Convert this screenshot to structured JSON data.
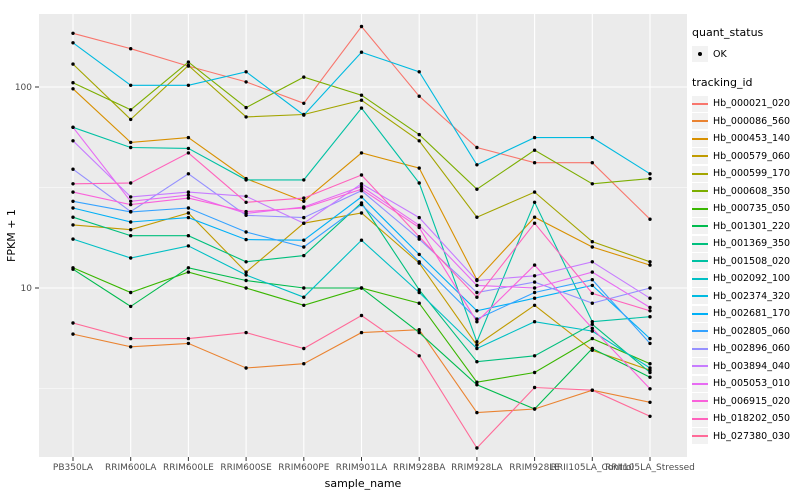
{
  "chart_data": {
    "type": "line",
    "title": "",
    "xlabel": "sample_name",
    "ylabel": "FPKM + 1",
    "y_scale": "log10",
    "y_ticks": [
      100,
      10
    ],
    "y_minor_ticks": [
      31.62,
      3.162
    ],
    "ylim": [
      1.45,
      230
    ],
    "grid": "on",
    "legend_position": "right",
    "point_marker": "filled-circle",
    "point_color": "#000000",
    "categories": [
      "PB350LA",
      "RRIM600LA",
      "RRIM600LE",
      "RRIM600SE",
      "RRIM600PE",
      "RRIM901LA",
      "RRIM928BA",
      "RRIM928LA",
      "RRIM928LE",
      "RRII105LA_Control",
      "RRII105LA_Stressed"
    ],
    "series": [
      {
        "name": "Hb_000021_020",
        "color": "#F8766D",
        "values": [
          185,
          155,
          127,
          106,
          83,
          200,
          90,
          50,
          42,
          42,
          22
        ]
      },
      {
        "name": "Hb_000086_560",
        "color": "#EA8331",
        "values": [
          5.9,
          5.1,
          5.3,
          4.0,
          4.2,
          6.0,
          6.2,
          2.4,
          2.5,
          3.1,
          2.7
        ]
      },
      {
        "name": "Hb_000453_140",
        "color": "#D89000",
        "values": [
          98,
          53,
          56,
          35,
          27,
          47,
          39.5,
          11,
          22.5,
          16,
          13
        ]
      },
      {
        "name": "Hb_000579_060",
        "color": "#C09B00",
        "values": [
          20.6,
          19.5,
          23.6,
          12,
          21,
          23.6,
          13.3,
          5.2,
          8.2,
          4.9,
          3.9
        ]
      },
      {
        "name": "Hb_000599_170",
        "color": "#A3A500",
        "values": [
          130,
          69,
          128,
          71,
          73,
          86,
          54,
          22.5,
          30,
          17,
          13.5
        ]
      },
      {
        "name": "Hb_000608_350",
        "color": "#7CAE00",
        "values": [
          105,
          77,
          133,
          79,
          112,
          91,
          58,
          31,
          48.5,
          33,
          35
        ]
      },
      {
        "name": "Hb_000735_050",
        "color": "#39B600",
        "values": [
          12.6,
          9.5,
          12.0,
          10.0,
          8.2,
          10.0,
          8.4,
          3.4,
          3.8,
          5.6,
          4.2
        ]
      },
      {
        "name": "Hb_001301_220",
        "color": "#00BB4E",
        "values": [
          12.4,
          8.1,
          12.6,
          10.9,
          10.0,
          10.0,
          6.0,
          3.3,
          2.5,
          5.0,
          3.6
        ]
      },
      {
        "name": "Hb_001369_350",
        "color": "#00BF7D",
        "values": [
          22.5,
          18.2,
          18.2,
          13.5,
          14.5,
          26.5,
          9.8,
          4.3,
          4.6,
          6.6,
          3.8
        ]
      },
      {
        "name": "Hb_001508_020",
        "color": "#00C1A3",
        "values": [
          63,
          50,
          49.5,
          34.5,
          34.5,
          78.5,
          33.3,
          5.4,
          26.7,
          6.8,
          7.2
        ]
      },
      {
        "name": "Hb_002092_100",
        "color": "#00BFC4",
        "values": [
          17.5,
          14.1,
          16.2,
          11.6,
          9.0,
          17.3,
          9.5,
          5.0,
          6.8,
          6.1,
          4.0
        ]
      },
      {
        "name": "Hb_002374_320",
        "color": "#00BAE0",
        "values": [
          166,
          102,
          102,
          119,
          72.5,
          149,
          119,
          41,
          56,
          56,
          37
        ]
      },
      {
        "name": "Hb_002681_170",
        "color": "#00B0F6",
        "values": [
          25,
          21.3,
          22.4,
          17.4,
          17.3,
          28.4,
          14.7,
          7.7,
          8.9,
          10.3,
          5.6
        ]
      },
      {
        "name": "Hb_002805_060",
        "color": "#35A2FF",
        "values": [
          27,
          23.9,
          25,
          19,
          16,
          26,
          13.5,
          7.0,
          9.5,
          11,
          5.3
        ]
      },
      {
        "name": "Hb_002896_060",
        "color": "#9590FF",
        "values": [
          39,
          24,
          37,
          23,
          22.4,
          30.5,
          17.5,
          9.5,
          10.7,
          8.4,
          10
        ]
      },
      {
        "name": "Hb_003894_040",
        "color": "#C77CFF",
        "values": [
          54,
          28.4,
          30,
          28.6,
          21,
          33,
          22.4,
          10.9,
          11.5,
          13.5,
          8.9
        ]
      },
      {
        "name": "Hb_005053_010",
        "color": "#E76BF3",
        "values": [
          63,
          27,
          29,
          23.5,
          25.3,
          32,
          20.5,
          10.3,
          10,
          12,
          8.0
        ]
      },
      {
        "name": "Hb_006915_020",
        "color": "#FA62DB",
        "values": [
          30,
          26,
          28,
          24,
          25,
          31,
          20,
          6.8,
          13,
          6.3,
          3.15
        ]
      },
      {
        "name": "Hb_018202_050",
        "color": "#FF62BC",
        "values": [
          33,
          33.3,
          47,
          26.7,
          28,
          36.5,
          18,
          9.0,
          21,
          9.4,
          7.7
        ]
      },
      {
        "name": "Hb_027380_030",
        "color": "#FF6A98",
        "values": [
          6.7,
          5.6,
          5.6,
          6.0,
          5.0,
          7.3,
          4.6,
          1.6,
          3.2,
          3.1,
          2.3
        ]
      }
    ]
  },
  "legend": {
    "quant_title": "quant_status",
    "quant_items": [
      {
        "label": "OK"
      }
    ],
    "tracking_title": "tracking_id"
  },
  "colors": {
    "panel_bg": "#EBEBEB",
    "grid_major": "#FFFFFF",
    "grid_minor": "#FFFFFF",
    "tick_mark": "#333333",
    "tick_label": "#4D4D4D",
    "axis_title": "#000000",
    "legend_key_bg": "#F2F2F2"
  }
}
